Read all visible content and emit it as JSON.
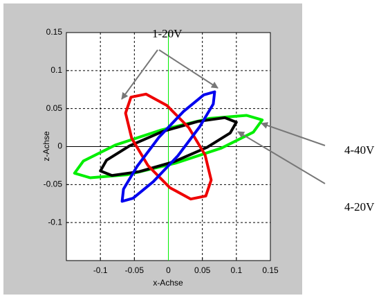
{
  "chart_data": {
    "type": "line",
    "x_label": "x-Achse",
    "y_label": "z-Achse",
    "xlim": [
      -0.15,
      0.15
    ],
    "xticks": [
      -0.1,
      -0.05,
      0,
      0.05,
      0.1,
      0.15
    ],
    "ylim": [
      -0.15,
      0.15
    ],
    "yticks": [
      -0.1,
      -0.05,
      0,
      0.05,
      0.1,
      0.15
    ],
    "grid": true,
    "series": [
      {
        "color": "#00ee00",
        "x": [
          0.138,
          0.115,
          0.06,
          -0.01,
          -0.078,
          -0.125,
          -0.138,
          -0.115,
          -0.06,
          0.01,
          0.078,
          0.125
        ],
        "y": [
          0.035,
          0.041,
          0.037,
          0.022,
          0.002,
          -0.019,
          -0.035,
          -0.041,
          -0.037,
          -0.022,
          -0.002,
          0.019
        ]
      },
      {
        "color": "#000000",
        "x": [
          0.1,
          0.083,
          0.043,
          -0.008,
          -0.057,
          -0.091,
          -0.1,
          -0.083,
          -0.043,
          0.008,
          0.057,
          0.091
        ],
        "y": [
          0.032,
          0.038,
          0.033,
          0.02,
          0.001,
          -0.018,
          -0.032,
          -0.038,
          -0.033,
          -0.02,
          -0.001,
          0.018
        ]
      },
      {
        "color": "#ee0000",
        "x": [
          0.055,
          0.063,
          0.054,
          0.03,
          -0.002,
          -0.033,
          -0.055,
          -0.063,
          -0.054,
          -0.03,
          0.002,
          0.033
        ],
        "y": [
          -0.065,
          -0.044,
          -0.011,
          0.025,
          0.054,
          0.069,
          0.065,
          0.044,
          0.011,
          -0.025,
          -0.054,
          -0.069
        ]
      },
      {
        "color": "#0000ee",
        "x": [
          0.068,
          0.052,
          0.022,
          -0.014,
          -0.046,
          -0.066,
          -0.068,
          -0.052,
          -0.022,
          0.014,
          0.046,
          0.066
        ],
        "y": [
          0.072,
          0.068,
          0.046,
          0.012,
          -0.026,
          -0.056,
          -0.072,
          -0.068,
          -0.046,
          -0.012,
          0.026,
          0.056
        ]
      }
    ],
    "annotations": [
      "1-20V",
      "4-40V",
      "4-20V"
    ]
  }
}
